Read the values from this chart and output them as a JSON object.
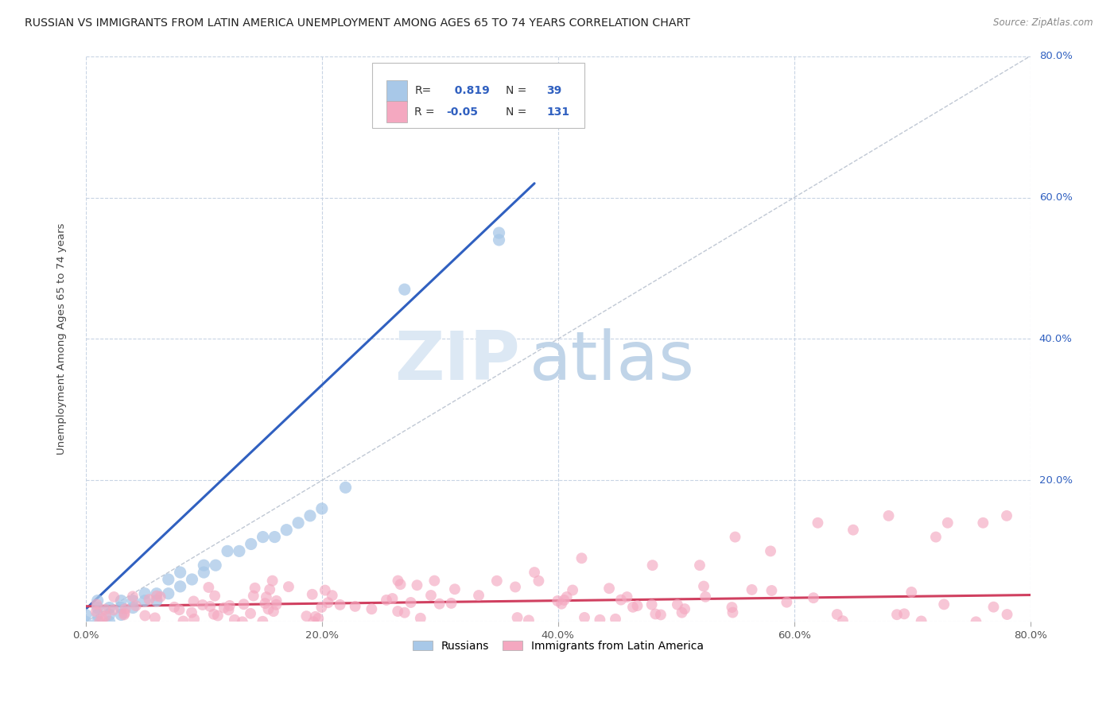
{
  "title": "RUSSIAN VS IMMIGRANTS FROM LATIN AMERICA UNEMPLOYMENT AMONG AGES 65 TO 74 YEARS CORRELATION CHART",
  "source": "Source: ZipAtlas.com",
  "ylabel": "Unemployment Among Ages 65 to 74 years",
  "legend_label1": "Russians",
  "legend_label2": "Immigrants from Latin America",
  "R1": 0.819,
  "N1": 39,
  "R2": -0.05,
  "N2": 131,
  "color_russian": "#a8c8e8",
  "color_latin": "#f4a8c0",
  "line_color_russian": "#3060c0",
  "line_color_latin": "#d04060",
  "background_color": "#ffffff",
  "grid_color": "#c8d4e4",
  "xlim": [
    0.0,
    0.8
  ],
  "ylim": [
    0.0,
    0.8
  ],
  "watermark_zip_color": "#dce8f4",
  "watermark_atlas_color": "#c0d4e8"
}
